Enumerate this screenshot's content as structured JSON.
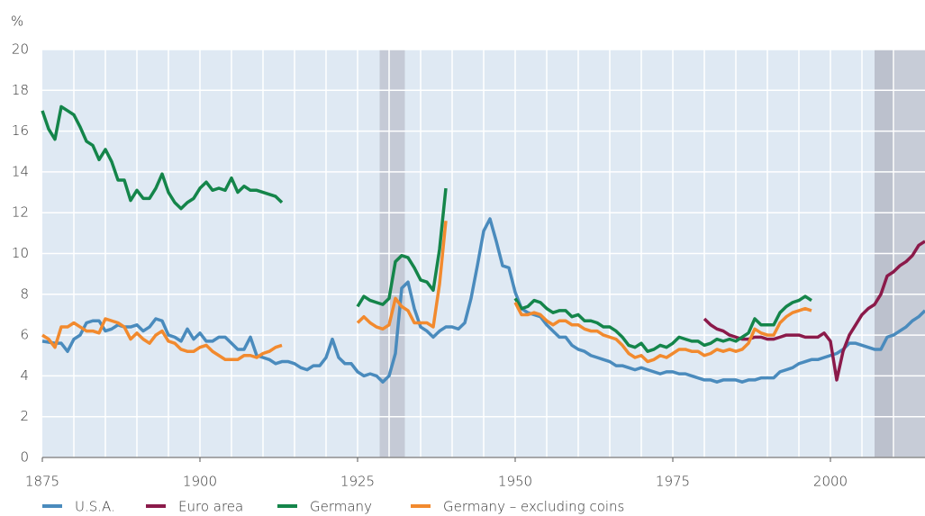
{
  "chart_data": {
    "type": "line",
    "ylabel": "%",
    "xlim": [
      1875,
      2015
    ],
    "ylim": [
      0,
      20
    ],
    "xticks": [
      1875,
      1900,
      1925,
      1950,
      1975,
      2000
    ],
    "yticks": [
      0,
      2,
      4,
      6,
      8,
      10,
      12,
      14,
      16,
      18,
      20
    ],
    "grid": true,
    "xgrid_step": 5,
    "legend": "bottom",
    "shaded_periods": [
      {
        "from": 1928.5,
        "to": 1932.5,
        "color": "#c5cad6"
      },
      {
        "from": 2007,
        "to": 2010.2,
        "color": "#bcc1cd"
      },
      {
        "from": 2010.2,
        "to": 2015,
        "color": "#c7ccd7"
      }
    ],
    "x": [
      1875,
      1876,
      1877,
      1878,
      1879,
      1880,
      1881,
      1882,
      1883,
      1884,
      1885,
      1886,
      1887,
      1888,
      1889,
      1890,
      1891,
      1892,
      1893,
      1894,
      1895,
      1896,
      1897,
      1898,
      1899,
      1900,
      1901,
      1902,
      1903,
      1904,
      1905,
      1906,
      1907,
      1908,
      1909,
      1910,
      1911,
      1912,
      1913,
      1914,
      1915,
      1916,
      1917,
      1918,
      1919,
      1920,
      1921,
      1922,
      1923,
      1924,
      1925,
      1926,
      1927,
      1928,
      1929,
      1930,
      1931,
      1932,
      1933,
      1934,
      1935,
      1936,
      1937,
      1938,
      1939,
      1940,
      1941,
      1942,
      1943,
      1944,
      1945,
      1946,
      1947,
      1948,
      1949,
      1950,
      1951,
      1952,
      1953,
      1954,
      1955,
      1956,
      1957,
      1958,
      1959,
      1960,
      1961,
      1962,
      1963,
      1964,
      1965,
      1966,
      1967,
      1968,
      1969,
      1970,
      1971,
      1972,
      1973,
      1974,
      1975,
      1976,
      1977,
      1978,
      1979,
      1980,
      1981,
      1982,
      1983,
      1984,
      1985,
      1986,
      1987,
      1988,
      1989,
      1990,
      1991,
      1992,
      1993,
      1994,
      1995,
      1996,
      1997,
      1998,
      1999,
      2000,
      2001,
      2002,
      2003,
      2004,
      2005,
      2006,
      2007,
      2008,
      2009,
      2010,
      2011,
      2012,
      2013,
      2014,
      2015
    ],
    "series": [
      {
        "name": "U.S.A.",
        "color": "#4a8bbd",
        "values": [
          5.7,
          5.65,
          5.6,
          5.6,
          5.2,
          5.8,
          6.0,
          6.6,
          6.7,
          6.7,
          6.2,
          6.3,
          6.5,
          6.4,
          6.4,
          6.5,
          6.2,
          6.4,
          6.8,
          6.7,
          6.0,
          5.9,
          5.7,
          6.3,
          5.8,
          6.1,
          5.7,
          5.7,
          5.9,
          5.9,
          5.6,
          5.3,
          5.3,
          5.9,
          5.0,
          4.9,
          4.8,
          4.6,
          4.7,
          4.7,
          4.6,
          4.4,
          4.3,
          4.5,
          4.5,
          4.9,
          5.8,
          4.9,
          4.6,
          4.6,
          4.2,
          4.0,
          4.1,
          4.0,
          3.7,
          4.0,
          5.1,
          8.3,
          8.6,
          7.3,
          6.4,
          6.2,
          5.9,
          6.2,
          6.4,
          6.4,
          6.3,
          6.6,
          7.8,
          9.4,
          11.1,
          11.7,
          10.6,
          9.4,
          9.3,
          8.1,
          7.3,
          7.1,
          7.0,
          6.9,
          6.5,
          6.2,
          5.9,
          5.9,
          5.5,
          5.3,
          5.2,
          5.0,
          4.9,
          4.8,
          4.7,
          4.5,
          4.5,
          4.4,
          4.3,
          4.4,
          4.3,
          4.2,
          4.1,
          4.2,
          4.2,
          4.1,
          4.1,
          4.0,
          3.9,
          3.8,
          3.8,
          3.7,
          3.8,
          3.8,
          3.8,
          3.7,
          3.8,
          3.8,
          3.9,
          3.9,
          3.9,
          4.2,
          4.3,
          4.4,
          4.6,
          4.7,
          4.8,
          4.8,
          4.9,
          5.0,
          5.1,
          5.3,
          5.6,
          5.6,
          5.5,
          5.4,
          5.3,
          5.3,
          5.9,
          6.0,
          6.2,
          6.4,
          6.7,
          6.9,
          7.2
        ]
      },
      {
        "name": "Euro area",
        "color": "#8b1a4a",
        "values": [
          null,
          null,
          null,
          null,
          null,
          null,
          null,
          null,
          null,
          null,
          null,
          null,
          null,
          null,
          null,
          null,
          null,
          null,
          null,
          null,
          null,
          null,
          null,
          null,
          null,
          null,
          null,
          null,
          null,
          null,
          null,
          null,
          null,
          null,
          null,
          null,
          null,
          null,
          null,
          null,
          null,
          null,
          null,
          null,
          null,
          null,
          null,
          null,
          null,
          null,
          null,
          null,
          null,
          null,
          null,
          null,
          null,
          null,
          null,
          null,
          null,
          null,
          null,
          null,
          null,
          null,
          null,
          null,
          null,
          null,
          null,
          null,
          null,
          null,
          null,
          null,
          null,
          null,
          null,
          null,
          null,
          null,
          null,
          null,
          null,
          null,
          null,
          null,
          null,
          null,
          null,
          null,
          null,
          null,
          null,
          null,
          null,
          null,
          null,
          null,
          null,
          null,
          null,
          null,
          null,
          6.8,
          6.5,
          6.3,
          6.2,
          6.0,
          5.9,
          5.8,
          5.8,
          5.9,
          5.9,
          5.8,
          5.8,
          5.9,
          6.0,
          6.0,
          6.0,
          5.9,
          5.9,
          5.9,
          6.1,
          5.7,
          3.8,
          5.2,
          6.0,
          6.5,
          7.0,
          7.3,
          7.5,
          8.0,
          8.9,
          9.1,
          9.4,
          9.6,
          9.9,
          10.4,
          10.6
        ]
      },
      {
        "name": "Germany",
        "color": "#14854a",
        "values": [
          17.0,
          16.1,
          15.6,
          17.2,
          17.0,
          16.8,
          16.2,
          15.5,
          15.3,
          14.6,
          15.1,
          14.5,
          13.6,
          13.6,
          12.6,
          13.1,
          12.7,
          12.7,
          13.2,
          13.9,
          13.0,
          12.5,
          12.2,
          12.5,
          12.7,
          13.2,
          13.5,
          13.1,
          13.2,
          13.1,
          13.7,
          13.0,
          13.3,
          13.1,
          13.1,
          13.0,
          12.9,
          12.8,
          12.5,
          null,
          null,
          null,
          null,
          null,
          null,
          null,
          null,
          null,
          null,
          null,
          7.4,
          7.9,
          7.7,
          7.6,
          7.5,
          7.8,
          9.6,
          9.9,
          9.8,
          9.3,
          8.7,
          8.6,
          8.2,
          10.2,
          13.2,
          null,
          null,
          null,
          null,
          null,
          null,
          null,
          null,
          null,
          null,
          7.8,
          7.3,
          7.4,
          7.7,
          7.6,
          7.3,
          7.1,
          7.2,
          7.2,
          6.9,
          7.0,
          6.7,
          6.7,
          6.6,
          6.4,
          6.4,
          6.2,
          5.9,
          5.5,
          5.4,
          5.6,
          5.2,
          5.3,
          5.5,
          5.4,
          5.6,
          5.9,
          5.8,
          5.7,
          5.7,
          5.5,
          5.6,
          5.8,
          5.7,
          5.8,
          5.7,
          5.9,
          6.1,
          6.8,
          6.5,
          6.5,
          6.5,
          7.1,
          7.4,
          7.6,
          7.7,
          7.9,
          7.7,
          null,
          null,
          null,
          null,
          null,
          null,
          null,
          null,
          null,
          null,
          null,
          null,
          null,
          null,
          null,
          null,
          null,
          null
        ]
      },
      {
        "name": "Germany – excluding coins",
        "color": "#f28a2e",
        "values": [
          6.0,
          5.8,
          5.4,
          6.4,
          6.4,
          6.6,
          6.4,
          6.2,
          6.2,
          6.1,
          6.8,
          6.7,
          6.6,
          6.4,
          5.8,
          6.1,
          5.8,
          5.6,
          6.0,
          6.2,
          5.7,
          5.6,
          5.3,
          5.2,
          5.2,
          5.4,
          5.5,
          5.2,
          5.0,
          4.8,
          4.8,
          4.8,
          5.0,
          5.0,
          4.9,
          5.1,
          5.2,
          5.4,
          5.5,
          null,
          null,
          null,
          null,
          null,
          null,
          null,
          null,
          null,
          null,
          null,
          6.6,
          6.9,
          6.6,
          6.4,
          6.3,
          6.5,
          7.8,
          7.4,
          7.2,
          6.6,
          6.6,
          6.6,
          6.4,
          8.5,
          11.6,
          null,
          null,
          null,
          null,
          null,
          null,
          null,
          null,
          null,
          null,
          7.6,
          7.0,
          7.0,
          7.1,
          7.0,
          6.7,
          6.5,
          6.7,
          6.7,
          6.5,
          6.5,
          6.3,
          6.2,
          6.2,
          6.0,
          5.9,
          5.8,
          5.5,
          5.1,
          4.9,
          5.0,
          4.7,
          4.8,
          5.0,
          4.9,
          5.1,
          5.3,
          5.3,
          5.2,
          5.2,
          5.0,
          5.1,
          5.3,
          5.2,
          5.3,
          5.2,
          5.3,
          5.6,
          6.3,
          6.1,
          6.0,
          6.0,
          6.6,
          6.9,
          7.1,
          7.2,
          7.3,
          7.2,
          null,
          null,
          null,
          null,
          null,
          null,
          null,
          null,
          null,
          null,
          null,
          null,
          null,
          null,
          null,
          null,
          null,
          null
        ]
      }
    ]
  }
}
